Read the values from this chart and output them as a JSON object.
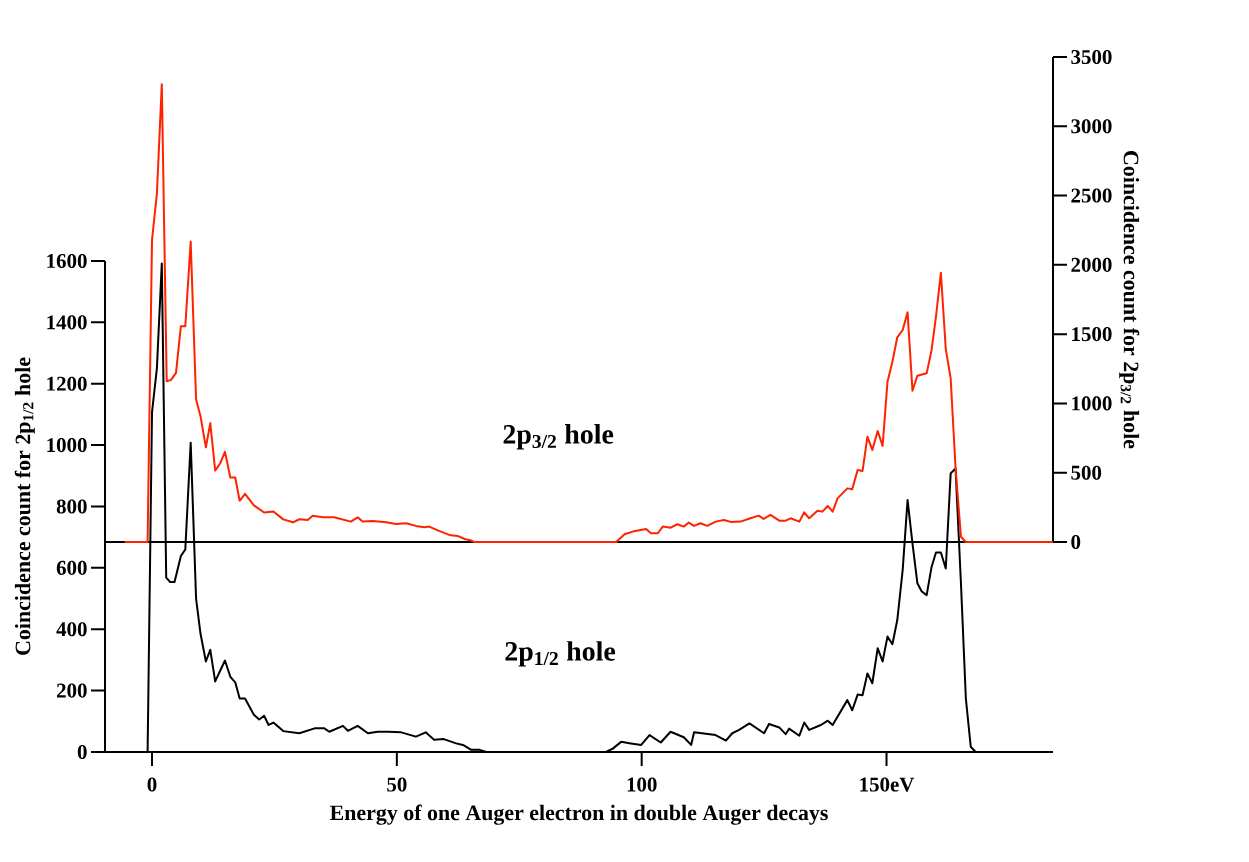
{
  "chart_data": {
    "type": "line",
    "xlabel": "Energy of one Auger electron in double Auger decays",
    "ylabel": "Coincidence count for 2p$_{1/2}$ hole",
    "y2label": "Coincidence count for 2p$_{3/2}$ hole",
    "annotations": [
      "2p$_{3/2}$ hole",
      "2p$_{1/2}$ hole"
    ],
    "xlim": [
      -9.6,
      184
    ],
    "xticks": [
      0,
      50,
      100,
      {
        "value": 150,
        "label": "150eV"
      }
    ],
    "ylim": [
      0,
      1600
    ],
    "yticks": [
      0,
      200,
      400,
      600,
      800,
      1000,
      1200,
      1400,
      1600
    ],
    "y2lim": [
      0,
      3500
    ],
    "y2ticks": [
      0,
      500,
      1000,
      1500,
      2000,
      2500,
      3000,
      3500
    ],
    "ref_lines": [
      {
        "axis": "y2",
        "value": 0,
        "color": "#000000"
      }
    ],
    "grid": false,
    "marker": "none",
    "line_style": "solid",
    "series": [
      {
        "color": "#000000",
        "x": [
          -9.6,
          -0.9,
          0,
          1,
          2,
          2.9,
          3.7,
          4.6,
          5.9,
          6.8,
          7.9,
          9,
          9.9,
          11,
          11.9,
          12.9,
          14.9,
          16,
          17,
          17.9,
          19,
          20.8,
          21.9,
          22.9,
          23.8,
          24.8,
          26.8,
          30.1,
          33.2,
          35.2,
          36.2,
          39,
          40,
          42,
          44.1,
          46.1,
          48.2,
          50.9,
          53.9,
          55.9,
          57.6,
          59.6,
          62.1,
          63.5,
          65.2,
          66.9,
          68.3,
          92.7,
          94.1,
          95.8,
          97.8,
          99.9,
          101.6,
          103.9,
          105.9,
          108.6,
          110.1,
          110.7,
          115.1,
          117.2,
          118.5,
          119.9,
          122,
          125,
          126,
          128.1,
          129.4,
          130.1,
          132.2,
          133.2,
          134.2,
          136.6,
          138,
          139,
          142,
          143,
          144.1,
          145.1,
          146.1,
          147.1,
          148.2,
          149.2,
          150.2,
          151.2,
          152.2,
          153.3,
          154.3,
          155.3,
          156.3,
          157.2,
          158.2,
          159.2,
          160.1,
          161.1,
          162.1,
          163.1,
          164.1,
          165.2,
          166.2,
          167.2,
          168.2,
          184
        ],
        "values": [
          0,
          0,
          1107,
          1251,
          1592,
          568,
          554,
          554,
          639,
          660,
          1008,
          500,
          386,
          295,
          333,
          230,
          298,
          245,
          227,
          174,
          174,
          121,
          106,
          118,
          88,
          96,
          68,
          61,
          77,
          77,
          66,
          85,
          69,
          85,
          61,
          66,
          66,
          64,
          50,
          64,
          40,
          42,
          28,
          23,
          7,
          7,
          0,
          0,
          11,
          33,
          28,
          23,
          55,
          31,
          66,
          48,
          23,
          64,
          55,
          37,
          61,
          72,
          93,
          61,
          91,
          80,
          58,
          76,
          53,
          96,
          72,
          88,
          102,
          88,
          169,
          136,
          187,
          185,
          256,
          224,
          338,
          295,
          376,
          351,
          430,
          593,
          821,
          680,
          550,
          523,
          511,
          603,
          650,
          650,
          598,
          908,
          924,
          550,
          175,
          17,
          0,
          0
        ]
      },
      {
        "color": "#ff2200",
        "axis": "y2",
        "x": [
          -5.6,
          -0.9,
          0,
          1,
          2,
          3,
          3.9,
          4.9,
          5.9,
          6.8,
          7.9,
          9,
          9.9,
          11,
          11.9,
          12.9,
          13.9,
          14.9,
          16,
          17,
          17.9,
          19,
          20.8,
          22.9,
          24.8,
          26.8,
          28.8,
          30.1,
          31.8,
          32.8,
          34.9,
          37.2,
          40.6,
          42,
          43,
          45.1,
          47.8,
          49.8,
          51.9,
          53.9,
          55.6,
          56.6,
          58.6,
          60.7,
          62.4,
          64,
          65.2,
          65.8,
          94.8,
          96.5,
          98.2,
          100.9,
          101.9,
          103.3,
          104.3,
          105.9,
          107.3,
          108.6,
          109.6,
          110.7,
          112,
          113.4,
          115.1,
          116.8,
          118.2,
          120.2,
          122.2,
          123.9,
          124.9,
          126.3,
          128.1,
          129.4,
          130.4,
          132.2,
          133.2,
          134.2,
          135.9,
          136.9,
          138,
          139,
          140,
          142,
          143,
          144.1,
          145.1,
          146.1,
          147.1,
          148.2,
          149.2,
          150.2,
          151.2,
          152.2,
          153.3,
          154.3,
          155.3,
          156.3,
          158.2,
          159.2,
          160.1,
          161.1,
          162.1,
          163.1,
          164.1,
          165.2,
          166.2,
          184
        ],
        "values": [
          0,
          0,
          2178,
          2514,
          3304,
          1160,
          1170,
          1220,
          1557,
          1557,
          2168,
          1029,
          908,
          683,
          858,
          515,
          566,
          650,
          465,
          465,
          297,
          347,
          264,
          213,
          220,
          163,
          142,
          164,
          159,
          190,
          178,
          178,
          147,
          178,
          147,
          152,
          142,
          130,
          135,
          116,
          106,
          111,
          80,
          51,
          44,
          20,
          10,
          0,
          0,
          56,
          75,
          94,
          63,
          63,
          111,
          103,
          128,
          111,
          140,
          116,
          135,
          116,
          147,
          159,
          145,
          147,
          171,
          190,
          166,
          195,
          154,
          154,
          171,
          147,
          214,
          171,
          226,
          219,
          260,
          219,
          315,
          387,
          380,
          520,
          512,
          760,
          664,
          801,
          693,
          1157,
          1301,
          1477,
          1530,
          1657,
          1092,
          1200,
          1217,
          1386,
          1626,
          1943,
          1393,
          1181,
          532,
          38,
          0,
          0
        ]
      }
    ]
  }
}
